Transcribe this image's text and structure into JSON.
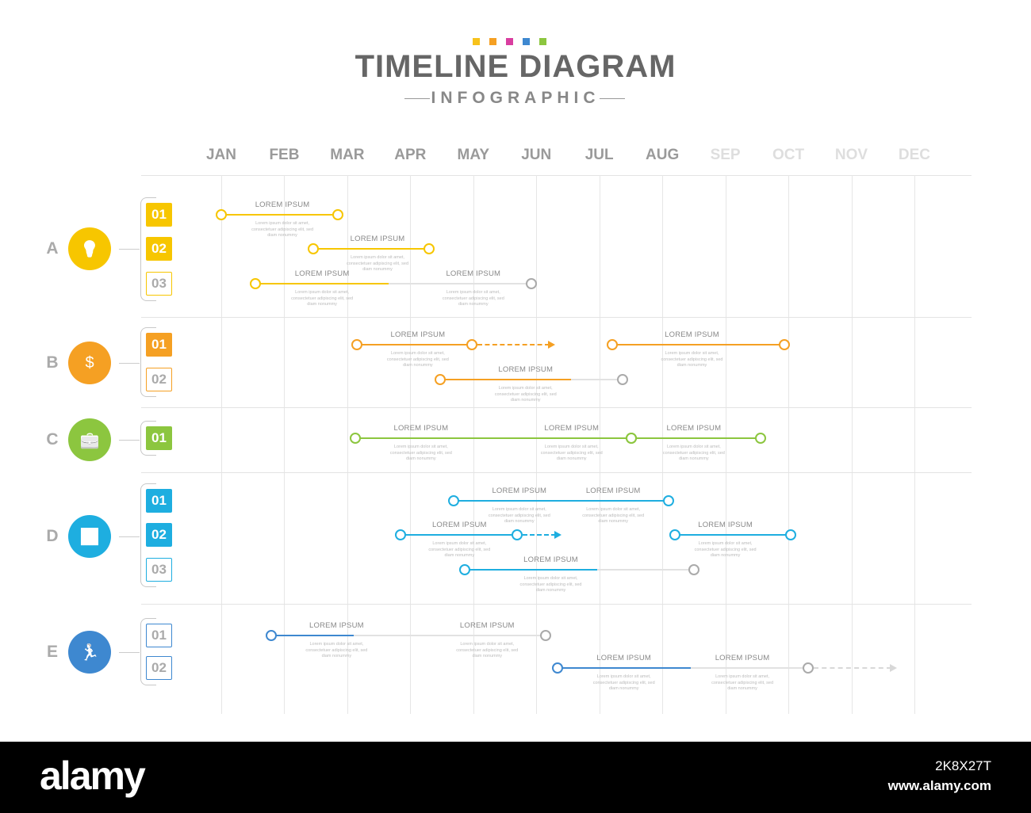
{
  "header": {
    "title": "TIMELINE DIAGRAM",
    "subtitle": "INFOGRAPHIC",
    "dot_colors": [
      "#f7c21c",
      "#f5a023",
      "#d93ea0",
      "#3e88d0",
      "#8cc63f"
    ]
  },
  "months": [
    {
      "label": "JAN"
    },
    {
      "label": "FEB"
    },
    {
      "label": "MAR"
    },
    {
      "label": "APR"
    },
    {
      "label": "MAY"
    },
    {
      "label": "JUN"
    },
    {
      "label": "JUL"
    },
    {
      "label": "AUG"
    },
    {
      "label": "SEP",
      "faded": true
    },
    {
      "label": "OCT",
      "faded": true
    },
    {
      "label": "NOV",
      "faded": true
    },
    {
      "label": "DEC",
      "faded": true
    }
  ],
  "item_label": "LOREM IPSUM",
  "item_desc": "Lorem ipsum dolor sit amet, consectetuer adipiscing elit, sed diam nonummy",
  "groups": [
    {
      "letter": "A",
      "color": "#f7c600",
      "icon": "lightbulb-icon",
      "rows": [
        {
          "badge": "01",
          "filled": true,
          "tasks": [
            {
              "start": 1.0,
              "end": 2.85,
              "labels": [
                1.97
              ]
            }
          ]
        },
        {
          "badge": "02",
          "filled": true,
          "tasks": [
            {
              "start": 2.46,
              "end": 4.3,
              "labels": [
                3.48
              ]
            }
          ]
        },
        {
          "badge": "03",
          "filled": false,
          "tasks": [
            {
              "start": 1.54,
              "end": 5.92,
              "progress_end": 3.66,
              "labels": [
                2.6,
                5.0
              ]
            }
          ]
        }
      ]
    },
    {
      "letter": "B",
      "color": "#f5a023",
      "icon": "money-cycle-icon",
      "rows": [
        {
          "badge": "01",
          "filled": true,
          "tasks": [
            {
              "start": 3.15,
              "end": 4.98,
              "extend_to": 6.3,
              "labels": [
                4.12
              ]
            },
            {
              "start": 7.2,
              "end": 9.94,
              "labels": [
                8.47
              ]
            }
          ]
        },
        {
          "badge": "02",
          "filled": false,
          "tasks": [
            {
              "start": 4.47,
              "end": 7.37,
              "progress_end": 6.55,
              "labels": [
                5.83
              ]
            }
          ]
        }
      ]
    },
    {
      "letter": "C",
      "color": "#8cc63f",
      "icon": "briefcase-icon",
      "rows": [
        {
          "badge": "01",
          "filled": true,
          "tasks": [
            {
              "start": 3.13,
              "end": 7.51,
              "labels": [
                4.17,
                6.56
              ]
            },
            {
              "start": 7.51,
              "end": 9.56,
              "labels": [
                8.5
              ]
            }
          ]
        }
      ]
    },
    {
      "letter": "D",
      "color": "#1eaee0",
      "icon": "growth-chart-icon",
      "rows": [
        {
          "badge": "01",
          "filled": true,
          "tasks": [
            {
              "start": 4.69,
              "end": 8.1,
              "labels": [
                5.73,
                7.22
              ]
            }
          ]
        },
        {
          "badge": "02",
          "filled": true,
          "tasks": [
            {
              "start": 3.85,
              "end": 5.69,
              "extend_to": 6.4,
              "labels": [
                4.78
              ]
            },
            {
              "start": 8.2,
              "end": 10.04,
              "labels": [
                9.0
              ]
            }
          ]
        },
        {
          "badge": "03",
          "filled": false,
          "tasks": [
            {
              "start": 4.87,
              "end": 8.5,
              "progress_end": 6.97,
              "labels": [
                6.23
              ]
            }
          ]
        }
      ]
    },
    {
      "letter": "E",
      "color": "#3e88d0",
      "icon": "runner-growth-icon",
      "rows": [
        {
          "badge": "01",
          "filled": false,
          "tasks": [
            {
              "start": 1.79,
              "end": 6.15,
              "progress_end": 3.1,
              "labels": [
                2.83,
                5.22
              ]
            }
          ]
        },
        {
          "badge": "02",
          "filled": false,
          "tasks": [
            {
              "start": 6.34,
              "end": 10.32,
              "progress_end": 8.45,
              "extend_to": 11.72,
              "extend_grey": true,
              "labels": [
                7.39,
                9.27
              ]
            }
          ]
        }
      ]
    }
  ],
  "footer": {
    "logo": "alamy",
    "image_id": "2K8X27T",
    "url": "www.alamy.com"
  }
}
